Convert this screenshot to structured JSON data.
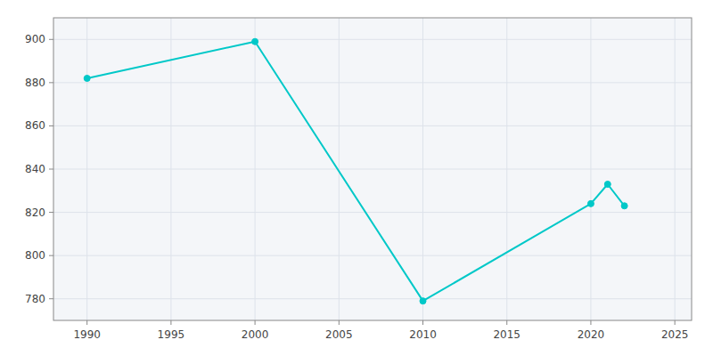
{
  "chart_data": {
    "type": "line",
    "x": [
      1990,
      2000,
      2010,
      2020,
      2021,
      2022
    ],
    "values": [
      882,
      899,
      779,
      824,
      833,
      823
    ],
    "color": "#00C8C8",
    "marker": "circle",
    "xlim": [
      1988,
      2026
    ],
    "ylim": [
      770,
      910
    ],
    "xticks": [
      1990,
      1995,
      2000,
      2005,
      2010,
      2015,
      2020,
      2025
    ],
    "yticks": [
      780,
      800,
      820,
      840,
      860,
      880,
      900
    ],
    "grid": true
  }
}
